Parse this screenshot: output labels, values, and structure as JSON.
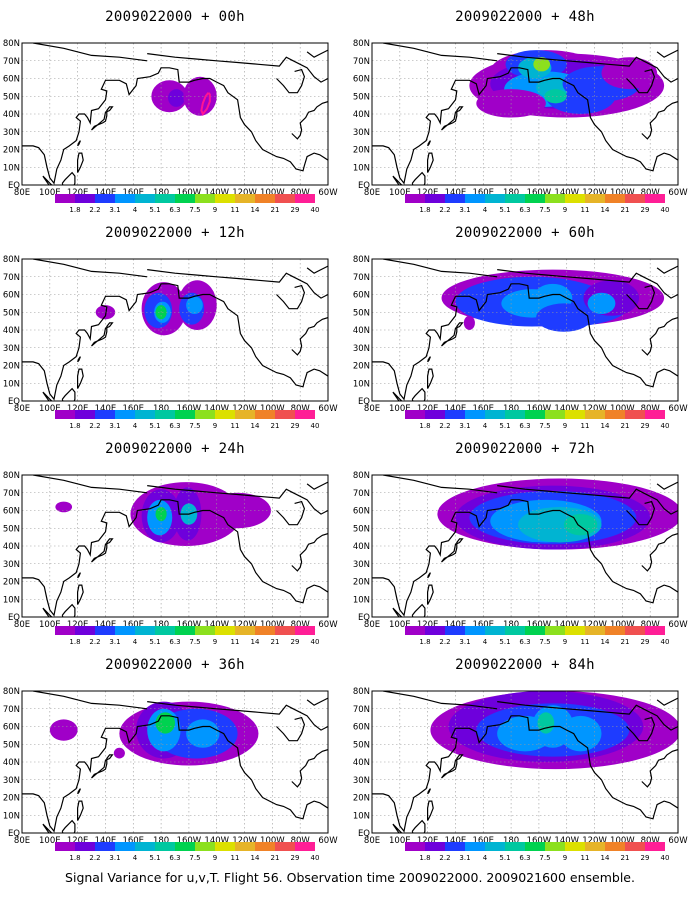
{
  "figure": {
    "caption": "Signal Variance for u,v,T. Flight 56. Observation time 2009022000. 2009021600 ensemble."
  },
  "colors": {
    "land_outline": "#000000",
    "grid": "#9a9a9a",
    "frame": "#000000",
    "observation_track": "#ff1493"
  },
  "colorbar": {
    "levels": [
      "1.8",
      "2.2",
      "3.1",
      "4",
      "5.1",
      "6.3",
      "7.5",
      "9",
      "11",
      "14",
      "21",
      "29",
      "40"
    ],
    "colors": [
      "#a000c8",
      "#6e00dc",
      "#1e3cff",
      "#0096ff",
      "#00b4d2",
      "#00c8a0",
      "#00d250",
      "#8ce01e",
      "#dce000",
      "#e6b428",
      "#f08228",
      "#f05050",
      "#ff1e96"
    ]
  },
  "lon_labels": [
    "80E",
    "100E",
    "120E",
    "140E",
    "160E",
    "180",
    "160W",
    "140W",
    "120W",
    "100W",
    "80W",
    "60W"
  ],
  "lat_labels": [
    "80N",
    "70N",
    "60N",
    "50N",
    "40N",
    "30N",
    "20N",
    "10N",
    "EQ"
  ],
  "panels": [
    {
      "title": "2009022000 + 00h"
    },
    {
      "title": "2009022000 + 48h"
    },
    {
      "title": "2009022000 + 12h"
    },
    {
      "title": "2009022000 + 60h"
    },
    {
      "title": "2009022000 + 24h"
    },
    {
      "title": "2009022000 + 72h"
    },
    {
      "title": "2009022000 + 36h"
    },
    {
      "title": "2009022000 + 84h"
    }
  ]
}
